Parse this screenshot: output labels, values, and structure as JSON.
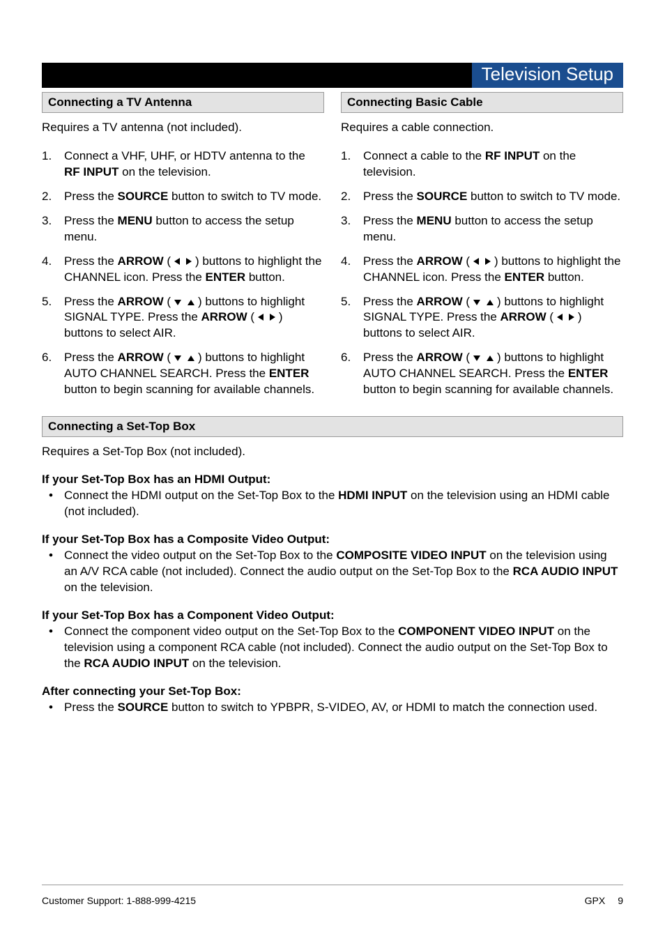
{
  "page_title": "Television Setup",
  "left": {
    "header": "Connecting a TV Antenna",
    "intro": "Requires a TV antenna (not included).",
    "steps": [
      {
        "pre": "Connect a VHF, UHF, or HDTV antenna to the ",
        "b1": "RF INPUT",
        "post": " on the television."
      },
      {
        "pre": "Press the ",
        "b1": "SOURCE",
        "post": " button to switch to TV mode."
      },
      {
        "pre": "Press the ",
        "b1": "MENU",
        "post": " button to access the setup menu."
      },
      {
        "pre": "Press the ",
        "b1": "ARROW",
        "arrows": "lr",
        "mid": " buttons to highlight the CHANNEL icon. Press the ",
        "b2": "ENTER",
        "post": " button."
      },
      {
        "pre": "Press the ",
        "b1": "ARROW",
        "arrows": "du",
        "mid": " buttons to highlight SIGNAL TYPE. Press the ",
        "b2": "ARROW",
        "arrows2": "lr",
        "post2": " buttons to select AIR."
      },
      {
        "pre": "Press the ",
        "b1": "ARROW",
        "arrows": "du",
        "mid": " buttons to highlight AUTO CHANNEL SEARCH. Press the ",
        "b2": "ENTER",
        "post": " button to begin scanning for available channels."
      }
    ]
  },
  "right": {
    "header": "Connecting Basic Cable",
    "intro": "Requires a cable connection.",
    "steps": [
      {
        "pre": "Connect a cable to the ",
        "b1": "RF INPUT",
        "post": " on the television."
      },
      {
        "pre": "Press the ",
        "b1": "SOURCE",
        "post": " button to switch to TV mode."
      },
      {
        "pre": "Press the ",
        "b1": "MENU",
        "post": " button to access the setup menu."
      },
      {
        "pre": "Press the ",
        "b1": "ARROW",
        "arrows": "lr",
        "mid": " buttons to highlight the CHANNEL icon. Press the ",
        "b2": "ENTER",
        "post": " button."
      },
      {
        "pre": "Press the ",
        "b1": "ARROW",
        "arrows": "du",
        "mid": " buttons to highlight SIGNAL TYPE. Press the ",
        "b2": "ARROW",
        "arrows2": "lr",
        "post2": " buttons to select AIR."
      },
      {
        "pre": "Press the ",
        "b1": "ARROW",
        "arrows": "du",
        "mid": " buttons to highlight AUTO CHANNEL SEARCH. Press the ",
        "b2": "ENTER",
        "post": " button to begin scanning for available channels."
      }
    ]
  },
  "stb": {
    "header": "Connecting a Set-Top Box",
    "intro": "Requires a Set-Top Box (not included).",
    "sections": [
      {
        "heading": "If your Set-Top Box has an HDMI Output:",
        "bullet_pre": "Connect the HDMI output on the Set-Top Box to the ",
        "bullet_b": "HDMI INPUT",
        "bullet_post": " on the television using an HDMI cable (not included)."
      },
      {
        "heading": "If your Set-Top Box has a Composite Video Output:",
        "bullet_pre": "Connect the video output on the Set-Top Box to the ",
        "bullet_b": "COMPOSITE VIDEO INPUT",
        "bullet_mid": " on the television using an A/V RCA cable (not included). Connect the audio output on the Set-Top Box to the ",
        "bullet_b2": "RCA AUDIO INPUT",
        "bullet_post": " on the television."
      },
      {
        "heading": "If your Set-Top Box has a Component Video Output:",
        "bullet_pre": "Connect the component video output on the Set-Top Box to the ",
        "bullet_b": "COMPONENT  VIDEO INPUT",
        "bullet_mid": " on the television using a component RCA cable (not included). Connect the audio output on the Set-Top Box to the ",
        "bullet_b2": "RCA AUDIO INPUT",
        "bullet_post": " on the television."
      },
      {
        "heading": "After connecting your Set-Top Box:",
        "bullet_pre": "Press the ",
        "bullet_b": "SOURCE",
        "bullet_post": " button to switch to  YPBPR, S-VIDEO, AV, or HDMI to match the connection used."
      }
    ]
  },
  "footer": {
    "left": "Customer Support: 1-888-999-4215",
    "brand": "GPX",
    "page": "9"
  },
  "colors": {
    "title_bg": "#1a4d8f",
    "bar_bg": "#000000",
    "header_bg": "#e3e3e3",
    "header_border": "#9a9a9a"
  }
}
